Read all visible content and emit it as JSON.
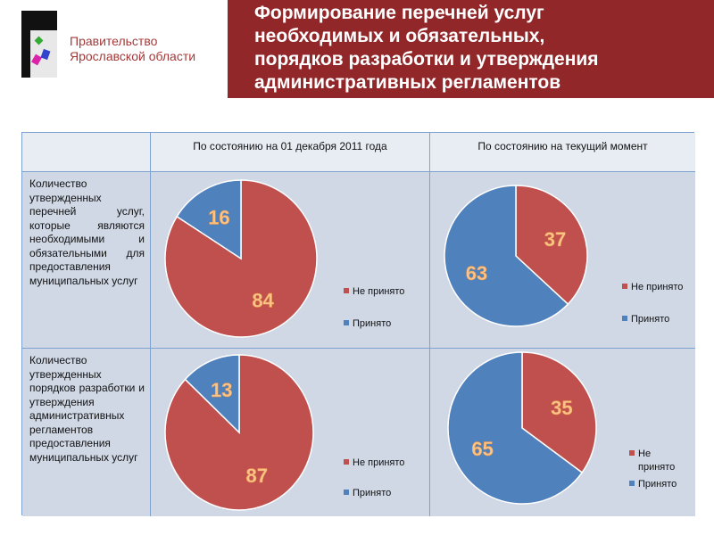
{
  "header": {
    "org": [
      "Правительство",
      "Ярославской области"
    ],
    "title": [
      "Формирование перечней услуг",
      "необходимых и обязательных,",
      "порядков разработки и утверждения",
      "административных регламентов"
    ]
  },
  "table": {
    "col_headers": [
      "По состоянию на 01 декабря 2011 года",
      "По состоянию на текущий момент"
    ],
    "row_labels": [
      "Количество утвержденных перечней услуг, которые являются необходимыми и обязательными для предоставления муниципальных услуг",
      "Количество утвержденных порядков разработки и утверждения административных регламентов предоставления муниципальных услуг"
    ]
  },
  "colors": {
    "not_accepted": "#c0504d",
    "accepted": "#4f81bd"
  },
  "chart_data": [
    {
      "type": "pie",
      "row": 1,
      "column": "По состоянию на 01 декабря 2011 года",
      "categories": [
        "Не принято",
        "Принято"
      ],
      "values": [
        84,
        16
      ],
      "legend": "right"
    },
    {
      "type": "pie",
      "row": 1,
      "column": "По состоянию на текущий момент",
      "categories": [
        "Не принято",
        "Принято"
      ],
      "values": [
        37,
        63
      ],
      "legend": "right"
    },
    {
      "type": "pie",
      "row": 2,
      "column": "По состоянию на 01 декабря 2011 года",
      "categories": [
        "Не принято",
        "Принято"
      ],
      "values": [
        87,
        13
      ],
      "legend": "right"
    },
    {
      "type": "pie",
      "row": 2,
      "column": "По состоянию на текущий момент",
      "categories": [
        "Не принято",
        "Принято"
      ],
      "values": [
        35,
        65
      ],
      "legend": "right"
    }
  ]
}
